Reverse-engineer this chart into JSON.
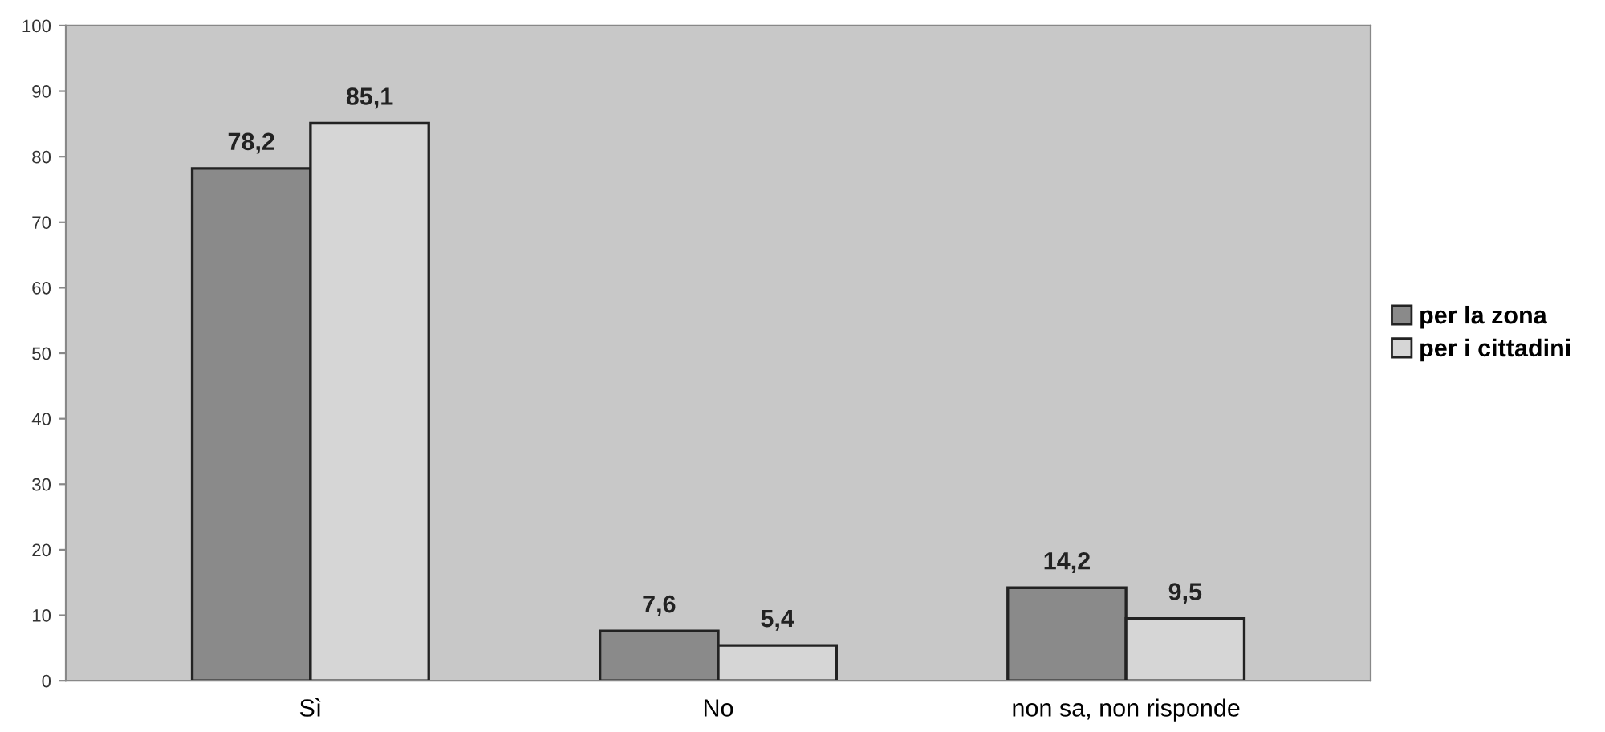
{
  "chart_data": {
    "type": "bar",
    "categories": [
      "Sì",
      "No",
      "non sa, non risponde"
    ],
    "series": [
      {
        "name": "per la zona",
        "color": "#8a8a8a",
        "values": [
          78.2,
          7.6,
          14.2
        ],
        "value_labels": [
          "78,2",
          "7,6",
          "14,2"
        ]
      },
      {
        "name": "per i cittadini",
        "color": "#d6d6d6",
        "values": [
          85.1,
          5.4,
          9.5
        ],
        "value_labels": [
          "85,1",
          "5,4",
          "9,5"
        ]
      }
    ],
    "ylim": [
      0,
      100
    ],
    "yticks": [
      0,
      10,
      20,
      30,
      40,
      50,
      60,
      70,
      80,
      90,
      100
    ],
    "grid": false,
    "legend": "right"
  }
}
